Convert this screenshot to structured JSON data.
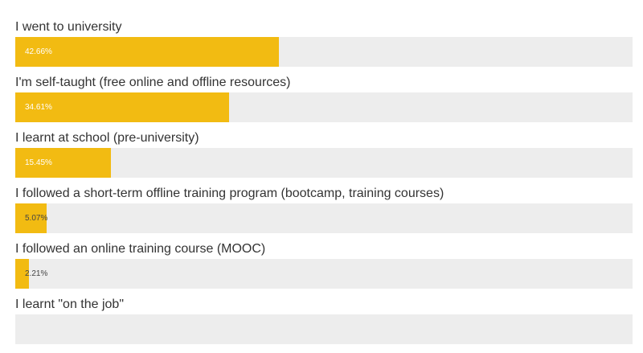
{
  "chart_data": {
    "type": "bar",
    "orientation": "horizontal",
    "xlim": [
      0,
      100
    ],
    "value_suffix": "%",
    "bar_color": "#f2bb12",
    "track_color": "#ededed",
    "categories": [
      "I went to university",
      "I'm self-taught (free online and offline resources)",
      "I learnt at school (pre-university)",
      "I followed a short-term offline training program (bootcamp, training courses)",
      "I followed an online training course (MOOC)",
      "I learnt \"on the job\""
    ],
    "values": [
      42.66,
      34.61,
      15.45,
      5.07,
      2.21,
      null
    ],
    "value_labels": [
      "42.66%",
      "34.61%",
      "15.45%",
      "5.07%",
      "2.21%",
      ""
    ]
  }
}
